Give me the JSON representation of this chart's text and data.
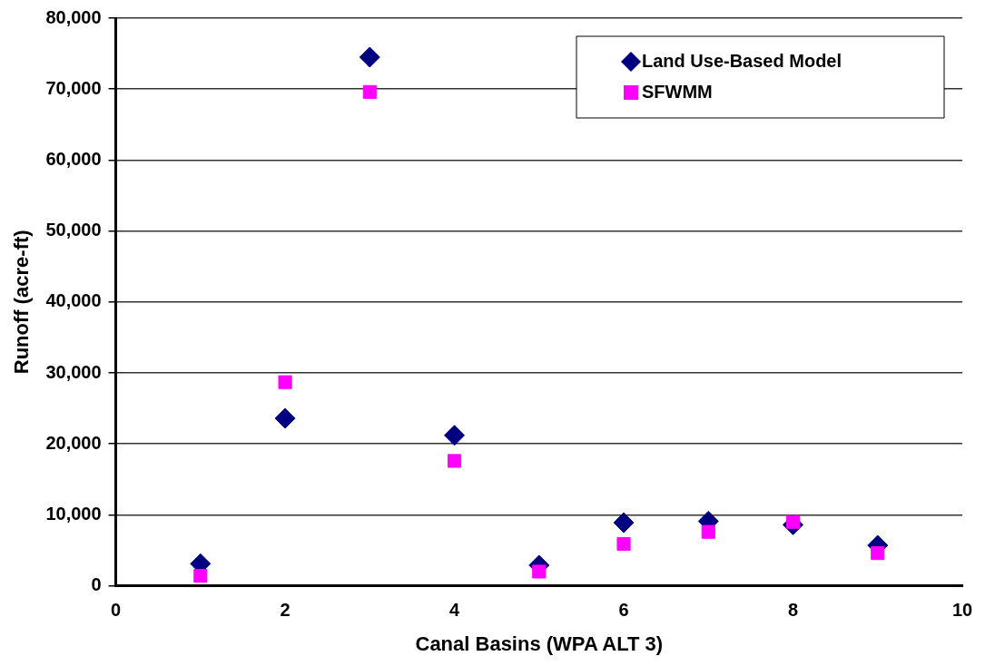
{
  "chart_data": {
    "type": "scatter",
    "xlabel": "Canal Basins (WPA ALT 3)",
    "ylabel": "Runoff (acre-ft)",
    "x": [
      1,
      2,
      3,
      4,
      5,
      6,
      7,
      8,
      9
    ],
    "series": [
      {
        "name": "Land Use-Based Model",
        "color": "#000080",
        "marker": "diamond",
        "values": [
          3100,
          23600,
          74500,
          21200,
          2900,
          8900,
          9100,
          8600,
          5700
        ]
      },
      {
        "name": "SFWMM",
        "color": "#ff00ff",
        "marker": "square",
        "values": [
          1400,
          28700,
          69600,
          17600,
          2000,
          5900,
          7600,
          9000,
          4600
        ]
      }
    ],
    "xlim": [
      0,
      10
    ],
    "xticks": [
      0,
      2,
      4,
      6,
      8,
      10
    ],
    "ylim": [
      0,
      80000
    ],
    "yticks": [
      {
        "value": 0,
        "label": "0"
      },
      {
        "value": 10000,
        "label": "10,000"
      },
      {
        "value": 20000,
        "label": "20,000"
      },
      {
        "value": 30000,
        "label": "30,000"
      },
      {
        "value": 40000,
        "label": "40,000"
      },
      {
        "value": 50000,
        "label": "50,000"
      },
      {
        "value": 60000,
        "label": "60,000"
      },
      {
        "value": 70000,
        "label": "70,000"
      },
      {
        "value": 80000,
        "label": "80,000"
      }
    ],
    "grid": "y",
    "legend": "top right"
  }
}
